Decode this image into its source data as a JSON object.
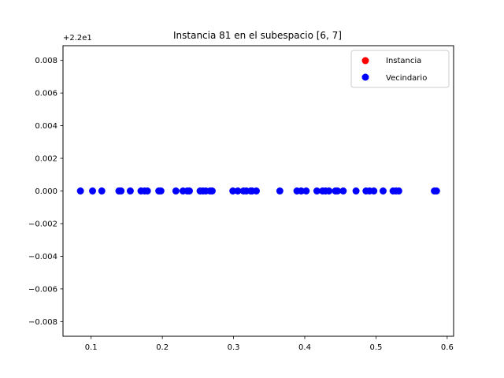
{
  "chart_data": {
    "type": "scatter",
    "title": "Instancia 81 en el subespacio [6, 7]",
    "xlabel": "",
    "ylabel": "",
    "offset_label": "+2.2e1",
    "xlim": [
      0.0605,
      0.609
    ],
    "ylim": [
      -0.0089,
      0.0089
    ],
    "x_ticks": [
      0.1,
      0.2,
      0.3,
      0.4,
      0.5,
      0.6
    ],
    "x_tick_labels": [
      "0.1",
      "0.2",
      "0.3",
      "0.4",
      "0.5",
      "0.6"
    ],
    "y_ticks": [
      -0.008,
      -0.006,
      -0.004,
      -0.002,
      0.0,
      0.002,
      0.004,
      0.006,
      0.008
    ],
    "y_tick_labels": [
      "−0.008",
      "−0.006",
      "−0.004",
      "−0.002",
      "0.000",
      "0.002",
      "0.004",
      "0.006",
      "0.008"
    ],
    "grid": false,
    "legend_position": "top-right",
    "series": [
      {
        "name": "Instancia",
        "color": "#ff0000",
        "x": [],
        "y": []
      },
      {
        "name": "Vecindario",
        "color": "#0000ff",
        "x": [
          0.085,
          0.102,
          0.115,
          0.139,
          0.142,
          0.155,
          0.17,
          0.175,
          0.179,
          0.195,
          0.198,
          0.219,
          0.229,
          0.235,
          0.238,
          0.253,
          0.257,
          0.261,
          0.267,
          0.27,
          0.299,
          0.306,
          0.314,
          0.318,
          0.324,
          0.326,
          0.332,
          0.365,
          0.389,
          0.395,
          0.402,
          0.417,
          0.425,
          0.429,
          0.434,
          0.443,
          0.446,
          0.454,
          0.472,
          0.486,
          0.491,
          0.497,
          0.51,
          0.524,
          0.528,
          0.532,
          0.582,
          0.585
        ],
        "y": [
          0,
          0,
          0,
          0,
          0,
          0,
          0,
          0,
          0,
          0,
          0,
          0,
          0,
          0,
          0,
          0,
          0,
          0,
          0,
          0,
          0,
          0,
          0,
          0,
          0,
          0,
          0,
          0,
          0,
          0,
          0,
          0,
          0,
          0,
          0,
          0,
          0,
          0,
          0,
          0,
          0,
          0,
          0,
          0,
          0,
          0,
          0,
          0
        ]
      }
    ]
  }
}
